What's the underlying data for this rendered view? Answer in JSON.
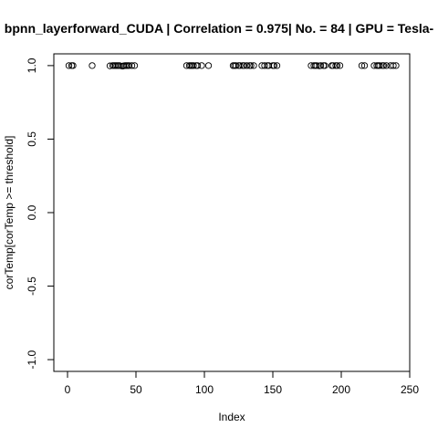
{
  "chart_data": {
    "type": "scatter",
    "title": "bpnn_layerforward_CUDA | Correlation = 0.975| No. = 84 | GPU = Tesla-",
    "xlabel": "Index",
    "ylabel": "corTemp[corTemp >= threshold]",
    "xlim": [
      -10,
      250
    ],
    "ylim": [
      -1.08,
      1.08
    ],
    "x_ticks": [
      0,
      50,
      100,
      150,
      200,
      250
    ],
    "y_ticks": [
      -1.0,
      -0.5,
      0.0,
      0.5,
      1.0
    ],
    "x_tick_labels": [
      "0",
      "50",
      "100",
      "150",
      "200",
      "250"
    ],
    "y_tick_labels": [
      "-1.0",
      "-0.5",
      "0.0",
      "0.5",
      "1.0"
    ],
    "grid": false,
    "marker": "open-circle",
    "points": [
      {
        "x": 1,
        "y": 1.0
      },
      {
        "x": 3,
        "y": 1.0
      },
      {
        "x": 4,
        "y": 1.0
      },
      {
        "x": 18,
        "y": 1.0
      },
      {
        "x": 31,
        "y": 0.998
      },
      {
        "x": 33,
        "y": 1.0
      },
      {
        "x": 34,
        "y": 1.0
      },
      {
        "x": 35,
        "y": 1.0
      },
      {
        "x": 36,
        "y": 1.0
      },
      {
        "x": 37,
        "y": 1.0
      },
      {
        "x": 38,
        "y": 1.0
      },
      {
        "x": 40,
        "y": 0.996
      },
      {
        "x": 41,
        "y": 0.998
      },
      {
        "x": 42,
        "y": 1.0
      },
      {
        "x": 43,
        "y": 1.0
      },
      {
        "x": 44,
        "y": 1.0
      },
      {
        "x": 45,
        "y": 1.0
      },
      {
        "x": 47,
        "y": 1.0
      },
      {
        "x": 49,
        "y": 1.0
      },
      {
        "x": 87,
        "y": 1.0
      },
      {
        "x": 89,
        "y": 1.0
      },
      {
        "x": 90,
        "y": 1.0
      },
      {
        "x": 91,
        "y": 1.0
      },
      {
        "x": 92,
        "y": 1.0
      },
      {
        "x": 94,
        "y": 1.0
      },
      {
        "x": 95,
        "y": 1.0
      },
      {
        "x": 98,
        "y": 1.0
      },
      {
        "x": 103,
        "y": 1.0
      },
      {
        "x": 121,
        "y": 1.0
      },
      {
        "x": 122,
        "y": 1.0
      },
      {
        "x": 123,
        "y": 1.0
      },
      {
        "x": 125,
        "y": 1.0
      },
      {
        "x": 126,
        "y": 1.0
      },
      {
        "x": 128,
        "y": 1.0
      },
      {
        "x": 129,
        "y": 1.0
      },
      {
        "x": 131,
        "y": 1.0
      },
      {
        "x": 133,
        "y": 1.0
      },
      {
        "x": 134,
        "y": 1.0
      },
      {
        "x": 136,
        "y": 1.0
      },
      {
        "x": 142,
        "y": 1.0
      },
      {
        "x": 144,
        "y": 1.0
      },
      {
        "x": 146,
        "y": 1.0
      },
      {
        "x": 147,
        "y": 1.0
      },
      {
        "x": 150,
        "y": 1.0
      },
      {
        "x": 151,
        "y": 1.0
      },
      {
        "x": 153,
        "y": 1.0
      },
      {
        "x": 178,
        "y": 1.0
      },
      {
        "x": 180,
        "y": 1.0
      },
      {
        "x": 181,
        "y": 1.0
      },
      {
        "x": 182,
        "y": 1.0
      },
      {
        "x": 184,
        "y": 0.998
      },
      {
        "x": 185,
        "y": 1.0
      },
      {
        "x": 187,
        "y": 1.0
      },
      {
        "x": 188,
        "y": 1.0
      },
      {
        "x": 193,
        "y": 1.0
      },
      {
        "x": 194,
        "y": 1.0
      },
      {
        "x": 196,
        "y": 1.0
      },
      {
        "x": 197,
        "y": 1.0
      },
      {
        "x": 199,
        "y": 1.0
      },
      {
        "x": 215,
        "y": 1.0
      },
      {
        "x": 217,
        "y": 1.0
      },
      {
        "x": 224,
        "y": 1.0
      },
      {
        "x": 226,
        "y": 1.0
      },
      {
        "x": 227,
        "y": 1.0
      },
      {
        "x": 228,
        "y": 1.0
      },
      {
        "x": 230,
        "y": 1.0
      },
      {
        "x": 231,
        "y": 1.0
      },
      {
        "x": 233,
        "y": 1.0
      },
      {
        "x": 236,
        "y": 1.0
      },
      {
        "x": 238,
        "y": 1.0
      },
      {
        "x": 240,
        "y": 1.0
      }
    ]
  }
}
